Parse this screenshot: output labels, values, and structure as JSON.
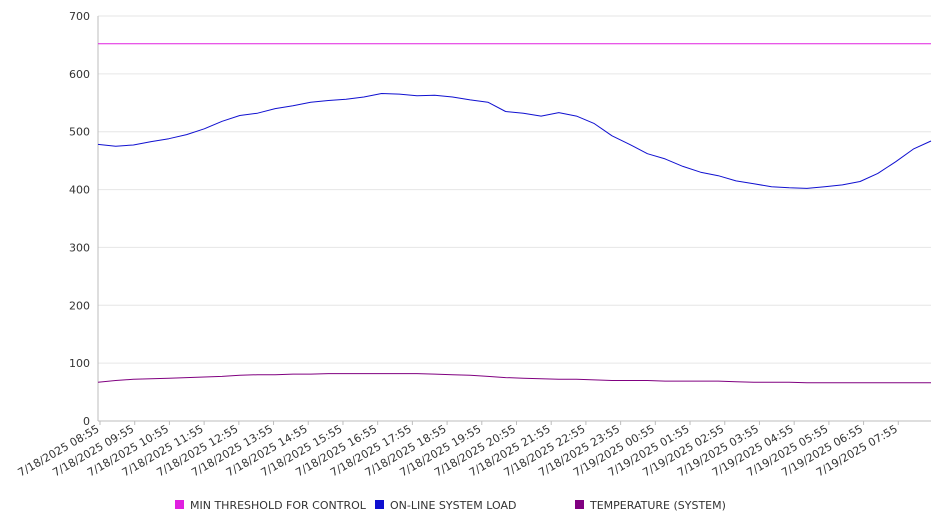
{
  "chart_data": {
    "type": "line",
    "title": "",
    "xlabel": "",
    "ylabel": "",
    "ylim": [
      0,
      700
    ],
    "y_ticks": [
      0,
      100,
      200,
      300,
      400,
      500,
      600,
      700
    ],
    "grid": true,
    "legend_position": "bottom",
    "x_tick_labels": [
      "7/18/2025 08:55",
      "7/18/2025 09:55",
      "7/18/2025 10:55",
      "7/18/2025 11:55",
      "7/18/2025 12:55",
      "7/18/2025 13:55",
      "7/18/2025 14:55",
      "7/18/2025 15:55",
      "7/18/2025 16:55",
      "7/18/2025 17:55",
      "7/18/2025 18:55",
      "7/18/2025 19:55",
      "7/18/2025 20:55",
      "7/18/2025 21:55",
      "7/18/2025 22:55",
      "7/18/2025 23:55",
      "7/19/2025 00:55",
      "7/19/2025 01:55",
      "7/19/2025 02:55",
      "7/19/2025 03:55",
      "7/19/2025 04:55",
      "7/19/2025 05:55",
      "7/19/2025 06:55",
      "7/19/2025 07:55"
    ],
    "x": [
      "7/18/2025 08:55",
      "7/18/2025 09:25",
      "7/18/2025 09:55",
      "7/18/2025 10:25",
      "7/18/2025 10:55",
      "7/18/2025 11:25",
      "7/18/2025 11:55",
      "7/18/2025 12:25",
      "7/18/2025 12:55",
      "7/18/2025 13:25",
      "7/18/2025 13:55",
      "7/18/2025 14:25",
      "7/18/2025 14:55",
      "7/18/2025 15:25",
      "7/18/2025 15:55",
      "7/18/2025 16:25",
      "7/18/2025 16:55",
      "7/18/2025 17:25",
      "7/18/2025 17:55",
      "7/18/2025 18:25",
      "7/18/2025 18:55",
      "7/18/2025 19:25",
      "7/18/2025 19:55",
      "7/18/2025 20:25",
      "7/18/2025 20:55",
      "7/18/2025 21:25",
      "7/18/2025 21:55",
      "7/18/2025 22:25",
      "7/18/2025 22:55",
      "7/18/2025 23:25",
      "7/18/2025 23:55",
      "7/19/2025 00:25",
      "7/19/2025 00:55",
      "7/19/2025 01:25",
      "7/19/2025 01:55",
      "7/19/2025 02:25",
      "7/19/2025 02:55",
      "7/19/2025 03:25",
      "7/19/2025 03:55",
      "7/19/2025 04:25",
      "7/19/2025 04:55",
      "7/19/2025 05:25",
      "7/19/2025 05:55",
      "7/19/2025 06:25",
      "7/19/2025 06:55",
      "7/19/2025 07:25",
      "7/19/2025 07:55",
      "7/19/2025 08:25"
    ],
    "series": [
      {
        "name": "MIN THRESHOLD FOR CONTROL",
        "color": "#e020e0",
        "values": [
          652,
          652,
          652,
          652,
          652,
          652,
          652,
          652,
          652,
          652,
          652,
          652,
          652,
          652,
          652,
          652,
          652,
          652,
          652,
          652,
          652,
          652,
          652,
          652,
          652,
          652,
          652,
          652,
          652,
          652,
          652,
          652,
          652,
          652,
          652,
          652,
          652,
          652,
          652,
          652,
          652,
          652,
          652,
          652,
          652,
          652,
          652,
          652
        ]
      },
      {
        "name": "ON-LINE SYSTEM LOAD",
        "color": "#1010d0",
        "values": [
          478,
          475,
          477,
          483,
          488,
          495,
          505,
          518,
          528,
          532,
          540,
          545,
          551,
          554,
          556,
          560,
          566,
          565,
          562,
          563,
          560,
          555,
          551,
          535,
          532,
          527,
          533,
          527,
          514,
          493,
          478,
          462,
          453,
          440,
          430,
          424,
          415,
          410,
          405,
          403,
          402,
          405,
          408,
          414,
          428,
          448,
          470,
          484
        ]
      },
      {
        "name": "TEMPERATURE (SYSTEM)",
        "color": "#800080",
        "values": [
          67,
          70,
          72,
          73,
          74,
          75,
          76,
          77,
          79,
          80,
          80,
          81,
          81,
          82,
          82,
          82,
          82,
          82,
          82,
          81,
          80,
          79,
          77,
          75,
          74,
          73,
          72,
          72,
          71,
          70,
          70,
          70,
          69,
          69,
          69,
          69,
          68,
          67,
          67,
          67,
          66,
          66,
          66,
          66,
          66,
          66,
          66,
          66
        ]
      }
    ]
  }
}
